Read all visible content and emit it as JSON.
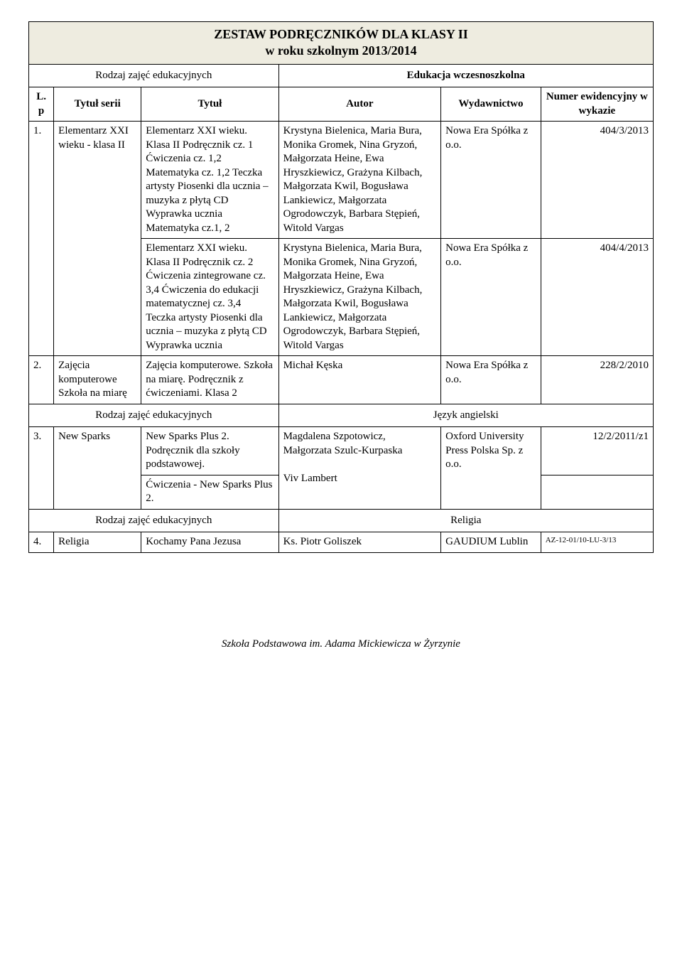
{
  "header": {
    "title_line1": "ZESTAW  PODRĘCZNIKÓW  DLA KLASY II",
    "title_line2": "w roku szkolnym 2013/2014"
  },
  "section1": {
    "left_label": "Rodzaj zajęć edukacyjnych",
    "right_label": "Edukacja wczesnoszkolna"
  },
  "colhead": {
    "lp": "L. p",
    "series": "Tytuł serii",
    "title": "Tytuł",
    "author": "Autor",
    "publisher": "Wydawnictwo",
    "number": "Numer ewidencyjny w wykazie"
  },
  "rows": {
    "r1": {
      "lp": "1.",
      "series": "Elementarz XXI wieku - klasa II",
      "title_a": "Elementarz XXI wieku. Klasa II Podręcznik cz. 1 Ćwiczenia cz. 1,2 Matematyka cz. 1,2 Teczka  artysty Piosenki dla ucznia – muzyka z płytą CD\nWyprawka ucznia Matematyka cz.1, 2",
      "author_a": "Krystyna Bielenica, Maria Bura, Monika Gromek, Nina Gryzoń, Małgorzata Heine, Ewa Hryszkiewicz, Grażyna Kilbach, Małgorzata Kwil, Bogusława Lankiewicz, Małgorzata Ogrodowczyk, Barbara Stępień, Witold Vargas",
      "publisher_a": "Nowa Era Spółka z o.o.",
      "num_a": "404/3/2013",
      "title_b": "Elementarz XXI wieku. Klasa II Podręcznik cz. 2 Ćwiczenia zintegrowane cz. 3,4 Ćwiczenia do edukacji matematycznej cz. 3,4\nTeczka  artysty Piosenki dla ucznia – muzyka z płytą CD\nWyprawka ucznia",
      "author_b": "Krystyna Bielenica, Maria Bura, Monika Gromek, Nina Gryzoń, Małgorzata Heine, Ewa Hryszkiewicz, Grażyna Kilbach, Małgorzata Kwil, Bogusława Lankiewicz, Małgorzata Ogrodowczyk, Barbara Stępień, Witold Vargas",
      "publisher_b": "Nowa Era Spółka z o.o.",
      "num_b": "404/4/2013"
    },
    "r2": {
      "lp": "2.",
      "series": "Zajęcia komputerowe Szkoła na miarę",
      "title": "Zajęcia komputerowe. Szkoła na miarę. Podręcznik z ćwiczeniami. Klasa 2",
      "author": "Michał Kęska",
      "publisher": "Nowa Era Spółka z o.o.",
      "num": "228/2/2010"
    }
  },
  "section2": {
    "left_label": "Rodzaj zajęć edukacyjnych",
    "right_label": "Język angielski"
  },
  "r3": {
    "lp": "3.",
    "series": "New Sparks",
    "title_a": "New Sparks Plus 2. Podręcznik dla szkoły podstawowej.",
    "author_a": "Magdalena Szpotowicz, Małgorzata Szulc-Kurpaska",
    "publisher_a": "Oxford University Press Polska Sp. z o.o.",
    "num_a": "12/2/2011/z1",
    "title_b": "Ćwiczenia - New Sparks Plus 2.",
    "author_b": "Viv Lambert"
  },
  "section3": {
    "left_label": "Rodzaj zajęć edukacyjnych",
    "right_label": "Religia"
  },
  "r4": {
    "lp": "4.",
    "series": "Religia",
    "title": "Kochamy Pana Jezusa",
    "author": "Ks. Piotr Goliszek",
    "publisher": "GAUDIUM Lublin",
    "num": "AZ-12-01/10-LU-3/13"
  },
  "footer": "Szkoła Podstawowa im. Adama Mickiewicza w Żyrzynie",
  "colors": {
    "header_bg": "#eeece0",
    "border": "#000000",
    "text": "#000000",
    "bg": "#ffffff"
  }
}
